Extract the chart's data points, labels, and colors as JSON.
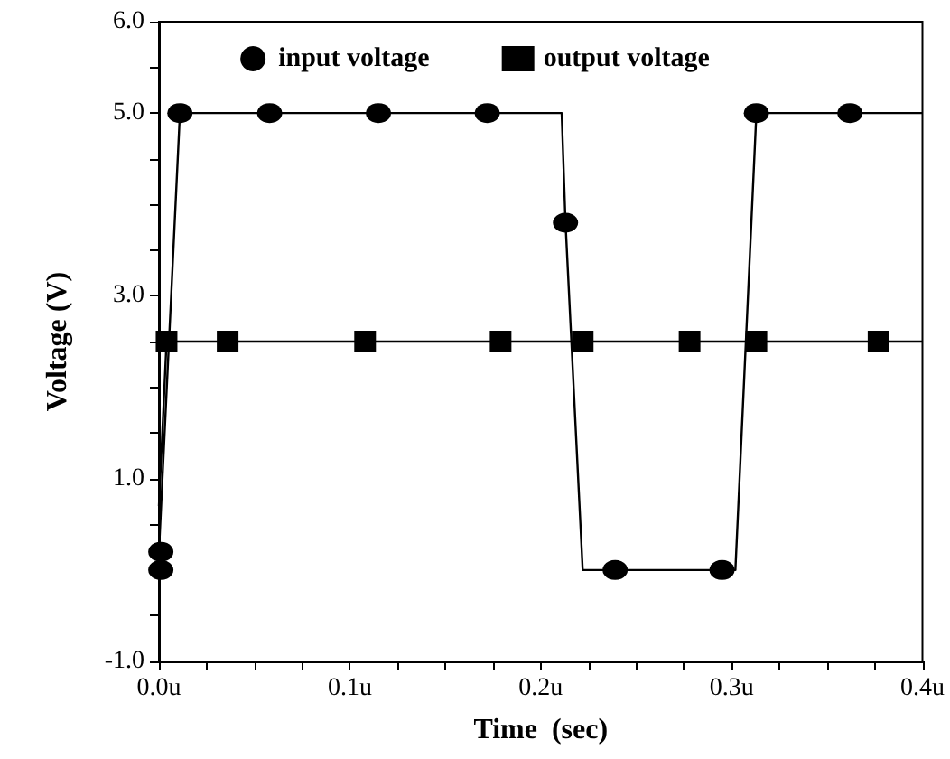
{
  "chart_data": {
    "type": "line",
    "xlabel": "Time  (sec)",
    "ylabel": "Voltage (V)",
    "xlim": [
      0,
      0.4
    ],
    "ylim": [
      -1,
      6
    ],
    "xticks": [
      {
        "value": 0,
        "label": "0.0u"
      },
      {
        "value": 0.025,
        "label": null
      },
      {
        "value": 0.05,
        "label": null
      },
      {
        "value": 0.075,
        "label": null
      },
      {
        "value": 0.1,
        "label": "0.1u"
      },
      {
        "value": 0.125,
        "label": null
      },
      {
        "value": 0.15,
        "label": null
      },
      {
        "value": 0.175,
        "label": null
      },
      {
        "value": 0.2,
        "label": "0.2u"
      },
      {
        "value": 0.225,
        "label": null
      },
      {
        "value": 0.25,
        "label": null
      },
      {
        "value": 0.275,
        "label": null
      },
      {
        "value": 0.3,
        "label": "0.3u"
      },
      {
        "value": 0.325,
        "label": null
      },
      {
        "value": 0.35,
        "label": null
      },
      {
        "value": 0.375,
        "label": null
      },
      {
        "value": 0.4,
        "label": "0.4u"
      }
    ],
    "yticks": [
      {
        "value": -1,
        "label": "-1.0"
      },
      {
        "value": -0.5,
        "label": null
      },
      {
        "value": 0,
        "label": null
      },
      {
        "value": 0.5,
        "label": null
      },
      {
        "value": 1,
        "label": "1.0"
      },
      {
        "value": 1.5,
        "label": null
      },
      {
        "value": 2,
        "label": null
      },
      {
        "value": 2.5,
        "label": null
      },
      {
        "value": 3,
        "label": "3.0"
      },
      {
        "value": 3.5,
        "label": null
      },
      {
        "value": 4,
        "label": null
      },
      {
        "value": 4.5,
        "label": null
      },
      {
        "value": 5,
        "label": "5.0"
      },
      {
        "value": 5.5,
        "label": null
      },
      {
        "value": 6,
        "label": "6.0"
      }
    ],
    "grid": false,
    "legend": "top",
    "line_style": "solid",
    "series": [
      {
        "type": "line",
        "marker": "none",
        "color": "#000000",
        "x": [
          0,
          0,
          0.011,
          0.211,
          0.213,
          0.222,
          0.302,
          0.313,
          0.4
        ],
        "values": [
          0,
          0.2,
          5,
          5,
          3.8,
          0,
          0,
          5,
          5
        ]
      },
      {
        "type": "line",
        "marker": "none",
        "color": "#000000",
        "x": [
          0,
          0.004,
          0.4
        ],
        "values": [
          0.7,
          2.5,
          2.5
        ]
      },
      {
        "type": "scatter",
        "name": "input voltage",
        "marker": "circle",
        "color": "#000000",
        "x": [
          0.001,
          0.001,
          0.011,
          0.058,
          0.115,
          0.172,
          0.213,
          0.239,
          0.295,
          0.313,
          0.362
        ],
        "values": [
          0,
          0.2,
          5,
          5,
          5,
          5,
          3.8,
          0,
          0,
          5,
          5
        ]
      },
      {
        "type": "scatter",
        "name": "output voltage",
        "marker": "square",
        "color": "#000000",
        "x": [
          0.004,
          0.036,
          0.108,
          0.179,
          0.222,
          0.278,
          0.313,
          0.377
        ],
        "values": [
          2.5,
          2.5,
          2.5,
          2.5,
          2.5,
          2.5,
          2.5,
          2.5
        ]
      }
    ]
  }
}
